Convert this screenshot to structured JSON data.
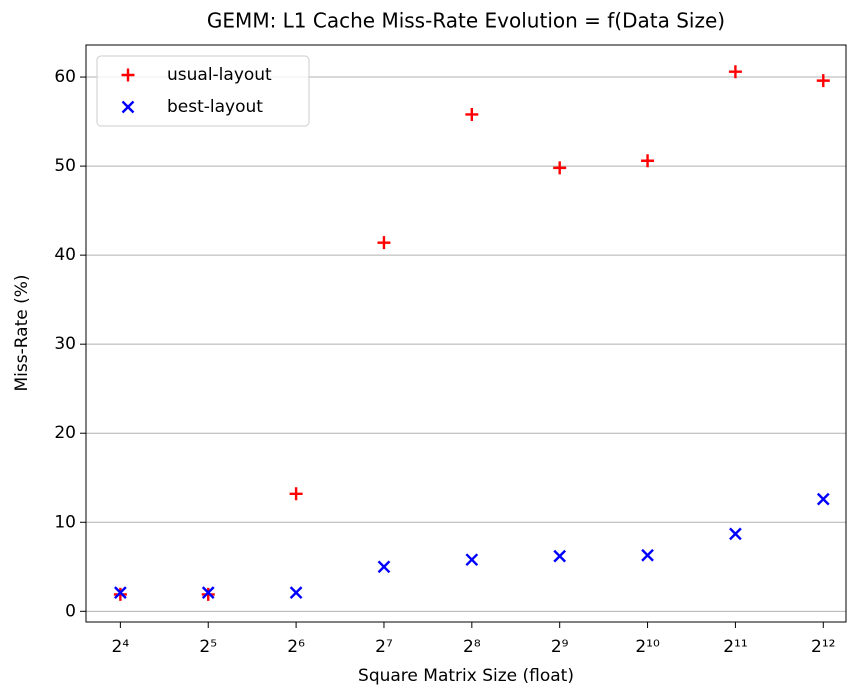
{
  "chart_data": {
    "type": "scatter",
    "title": "GEMM: L1 Cache Miss-Rate Evolution = f(Data Size)",
    "xlabel": "Square Matrix Size (float)",
    "ylabel": "Miss-Rate (%)",
    "x": [
      16,
      32,
      64,
      128,
      256,
      512,
      1024,
      2048,
      4096
    ],
    "series": [
      {
        "name": "usual-layout",
        "color": "#ff0000",
        "marker": "+",
        "values": [
          1.9,
          1.9,
          13.2,
          41.4,
          55.8,
          49.8,
          50.6,
          60.6,
          59.6
        ]
      },
      {
        "name": "best-layout",
        "color": "#0000ff",
        "marker": "x",
        "values": [
          2.1,
          2.1,
          2.1,
          5.0,
          5.8,
          6.2,
          6.3,
          8.7,
          12.6
        ]
      }
    ],
    "xscale": "log",
    "xlim": [
      12.2,
      4900
    ],
    "xticks": [
      {
        "value": 16,
        "label": "2⁴"
      },
      {
        "value": 32,
        "label": "2⁵"
      },
      {
        "value": 64,
        "label": "2⁶"
      },
      {
        "value": 128,
        "label": "2⁷"
      },
      {
        "value": 256,
        "label": "2⁸"
      },
      {
        "value": 512,
        "label": "2⁹"
      },
      {
        "value": 1024,
        "label": "2¹⁰"
      },
      {
        "value": 2048,
        "label": "2¹¹"
      },
      {
        "value": 4096,
        "label": "2¹²"
      }
    ],
    "ylim": [
      -1.2,
      63.6
    ],
    "yticks": [
      0,
      10,
      20,
      30,
      40,
      50,
      60
    ],
    "grid": "y",
    "legend": "upper left"
  }
}
